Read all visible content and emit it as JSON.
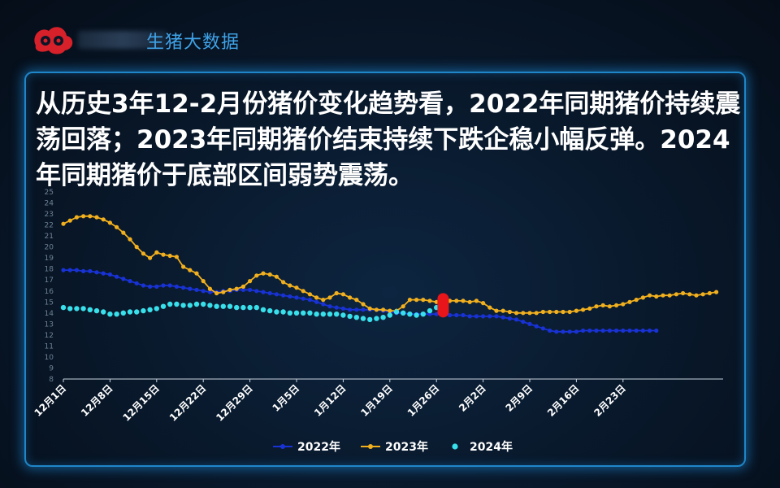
{
  "header": {
    "brand": "生猪大数据",
    "logo_icon": "brand-logo-icon"
  },
  "headline": "从历史3年12-2月份猪价变化趋势看，2022年同期猪价持续震荡回落；2023年同期猪价结束持续下跌企稳小幅反弹。2024年同期猪价于底部区间弱势震荡。",
  "chart_data": {
    "type": "line",
    "ylim": [
      8,
      25
    ],
    "yticks": [
      8,
      9,
      10,
      11,
      12,
      13,
      14,
      15,
      16,
      17,
      18,
      19,
      20,
      21,
      22,
      23,
      24,
      25
    ],
    "x_labels": [
      "12月1日",
      "12月8日",
      "12月15日",
      "12月22日",
      "12月29日",
      "1月5日",
      "1月12日",
      "1月19日",
      "1月26日",
      "2月2日",
      "2月9日",
      "2月16日",
      "2月23日"
    ],
    "grid": false,
    "legend_position": "bottom",
    "series": [
      {
        "name": "2022年",
        "color": "#1832d6",
        "values": [
          17.9,
          17.9,
          17.9,
          17.8,
          17.8,
          17.7,
          17.6,
          17.5,
          17.3,
          17.1,
          16.9,
          16.7,
          16.5,
          16.4,
          16.4,
          16.5,
          16.5,
          16.4,
          16.3,
          16.2,
          16.1,
          16.0,
          15.9,
          15.9,
          16.0,
          16.0,
          16.1,
          16.1,
          16.1,
          16.0,
          15.9,
          15.8,
          15.7,
          15.6,
          15.5,
          15.4,
          15.3,
          15.2,
          15.0,
          14.8,
          14.6,
          14.5,
          14.4,
          14.3,
          14.3,
          14.3,
          14.3,
          14.3,
          14.2,
          14.1,
          14.0,
          14.0,
          13.9,
          13.9,
          13.9,
          13.9,
          13.9,
          13.8,
          13.8,
          13.8,
          13.8,
          13.7,
          13.7,
          13.7,
          13.7,
          13.7,
          13.6,
          13.5,
          13.4,
          13.2,
          13.0,
          12.8,
          12.6,
          12.4,
          12.3,
          12.3,
          12.3,
          12.3,
          12.4,
          12.4,
          12.4,
          12.4,
          12.4,
          12.4,
          12.4,
          12.4,
          12.4,
          12.4,
          12.4,
          12.4
        ]
      },
      {
        "name": "2023年",
        "color": "#f2b01e",
        "values": [
          22.1,
          22.4,
          22.7,
          22.8,
          22.8,
          22.7,
          22.5,
          22.2,
          21.8,
          21.3,
          20.7,
          20.0,
          19.4,
          19.0,
          19.5,
          19.3,
          19.2,
          19.1,
          18.2,
          17.9,
          17.6,
          16.9,
          16.2,
          15.8,
          15.9,
          16.1,
          16.2,
          16.4,
          16.9,
          17.4,
          17.6,
          17.5,
          17.3,
          16.8,
          16.5,
          16.3,
          16.0,
          15.7,
          15.4,
          15.2,
          15.4,
          15.8,
          15.7,
          15.4,
          15.2,
          14.8,
          14.4,
          14.3,
          14.3,
          14.2,
          14.2,
          14.6,
          15.2,
          15.2,
          15.2,
          15.1,
          15.0,
          15.0,
          15.1,
          15.1,
          15.1,
          15.0,
          15.1,
          14.9,
          14.5,
          14.2,
          14.2,
          14.1,
          14.0,
          14.0,
          14.0,
          14.0,
          14.1,
          14.1,
          14.1,
          14.1,
          14.1,
          14.2,
          14.3,
          14.4,
          14.6,
          14.7,
          14.6,
          14.7,
          14.8,
          15.0,
          15.2,
          15.4,
          15.6,
          15.5,
          15.6,
          15.6,
          15.7,
          15.8,
          15.7,
          15.6,
          15.7,
          15.8,
          15.9
        ]
      },
      {
        "name": "2024年",
        "color": "#38e0ec",
        "values": [
          14.5,
          14.4,
          14.4,
          14.4,
          14.3,
          14.2,
          14.1,
          13.9,
          13.9,
          14.0,
          14.1,
          14.1,
          14.2,
          14.3,
          14.4,
          14.6,
          14.8,
          14.8,
          14.7,
          14.7,
          14.8,
          14.8,
          14.7,
          14.6,
          14.6,
          14.6,
          14.5,
          14.5,
          14.5,
          14.5,
          14.3,
          14.2,
          14.1,
          14.1,
          14.0,
          14.0,
          14.0,
          14.0,
          13.9,
          13.9,
          13.9,
          13.9,
          13.8,
          13.7,
          13.6,
          13.5,
          13.4,
          13.5,
          13.6,
          13.8,
          14.1,
          14.0,
          13.9,
          13.8,
          13.9,
          14.2,
          14.5,
          14.7
        ]
      }
    ],
    "highlight_color": "#e8151a"
  }
}
